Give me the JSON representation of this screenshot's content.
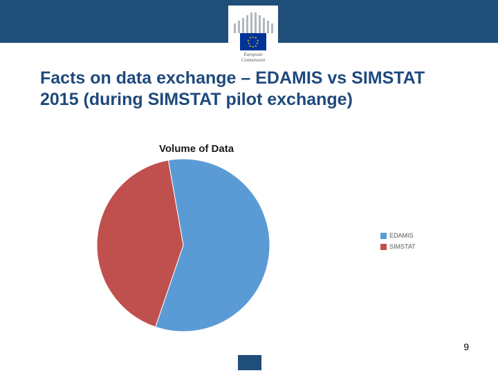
{
  "header": {
    "bar_color": "#1f4e79",
    "logo": {
      "flag_bg": "#003399",
      "star_color": "#ffcc00",
      "bar_color": "#b0b7bd",
      "text_line1": "European",
      "text_line2": "Commission"
    }
  },
  "title": {
    "text": "Facts on data exchange – EDAMIS vs SIMSTAT 2015 (during SIMSTAT pilot exchange)",
    "color": "#1f497d",
    "font_size": 25,
    "font_weight": 700
  },
  "chart": {
    "type": "pie",
    "title": "Volume of Data",
    "title_fontsize": 15,
    "title_color": "#1a1a1a",
    "diameter": 250,
    "series": [
      {
        "label": "EDAMIS",
        "value": 58,
        "color": "#5b9bd5"
      },
      {
        "label": "SIMSTAT",
        "value": 42,
        "color": "#c0504d"
      }
    ],
    "start_angle_deg": -10,
    "stroke": "#ffffff",
    "stroke_width": 1,
    "legend": {
      "font_size": 9,
      "text_color": "#595959",
      "swatch_size": 9
    }
  },
  "page_number": "9",
  "footer_flag_color": "#1f4e79",
  "background_color": "#ffffff"
}
